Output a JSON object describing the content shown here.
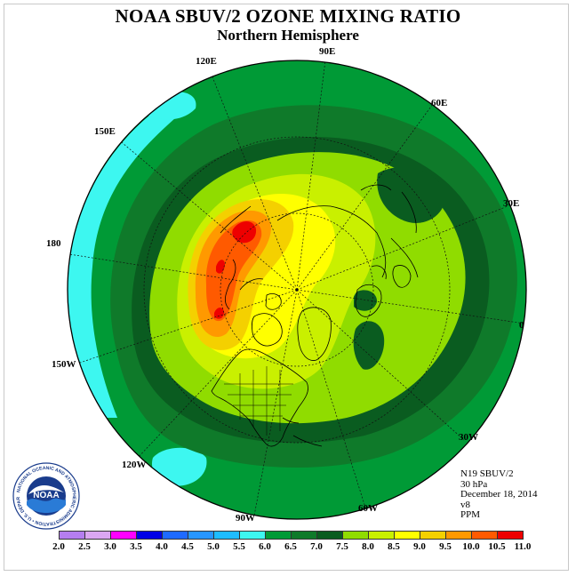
{
  "title": "NOAA SBUV/2 OZONE MIXING RATIO",
  "subtitle": "Northern Hemisphere",
  "lon_labels": {
    "e90": "90E",
    "e60": "60E",
    "e30": "30E",
    "zero": "0",
    "w30": "30W",
    "w60": "60W",
    "w90": "90W",
    "w120": "120W",
    "w150": "150W",
    "d180": "180",
    "e150": "150E",
    "e120": "120E"
  },
  "info": {
    "instrument": "N19 SBUV/2",
    "pressure": "30 hPa",
    "date": "December 18, 2014",
    "version": "v8",
    "units": "PPM"
  },
  "logo": {
    "name": "NOAA",
    "ring_text": "NATIONAL OCEANIC AND ATMOSPHERIC ADMINISTRATION",
    "ring_text_bottom": "U.S. DEPARTMENT OF COMMERCE"
  },
  "colorbar": {
    "ticks": [
      "2.0",
      "2.5",
      "3.0",
      "3.5",
      "4.0",
      "4.5",
      "5.0",
      "5.5",
      "6.0",
      "6.5",
      "7.0",
      "7.5",
      "8.0",
      "8.5",
      "9.0",
      "9.5",
      "10.0",
      "10.5",
      "11.0"
    ],
    "colors": [
      "#b57ef0",
      "#dba7f2",
      "#ff00ff",
      "#0000e6",
      "#1e6aff",
      "#2896ff",
      "#1ebcff",
      "#3df7f0",
      "#009a36",
      "#0f7a2a",
      "#0a5c20",
      "#90dc00",
      "#c9f000",
      "#ffff00",
      "#f4d000",
      "#ff9900",
      "#ff5a00",
      "#ee0000",
      "#8a5a3a"
    ]
  },
  "field_colors": {
    "c55": "#3df7f0",
    "c60": "#009a36",
    "c65": "#0f7a2a",
    "c70": "#0a5c20",
    "c75": "#90dc00",
    "c80": "#c9f000",
    "c85": "#ffff00",
    "c90": "#f4d000",
    "c95": "#ff9900",
    "c100": "#ff5a00",
    "c105": "#ee0000"
  }
}
